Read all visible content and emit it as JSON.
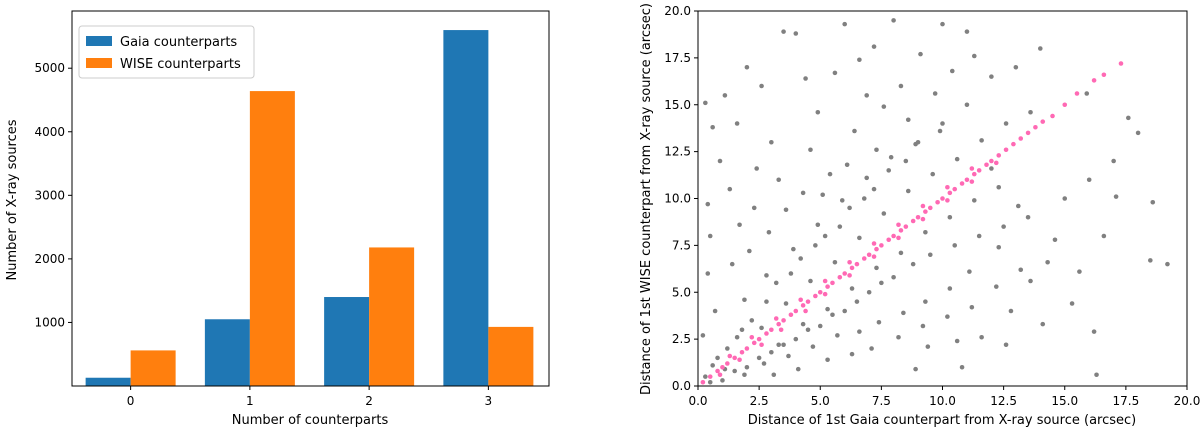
{
  "chart_data": [
    {
      "type": "bar",
      "xlabel": "Number of counterparts",
      "ylabel": "Number of X-ray sources",
      "categories": [
        "0",
        "1",
        "2",
        "3"
      ],
      "series": [
        {
          "name": "Gaia counterparts",
          "color": "#1f77b4",
          "values": [
            130,
            1050,
            1400,
            5600
          ]
        },
        {
          "name": "WISE counterparts",
          "color": "#ff7f0e",
          "values": [
            560,
            4640,
            2180,
            930
          ]
        }
      ],
      "ylim": [
        0,
        5900
      ],
      "yticks": [
        "1000",
        "2000",
        "3000",
        "4000",
        "5000"
      ],
      "legend": "top-left"
    },
    {
      "type": "scatter",
      "xlabel": "Distance of 1st Gaia counterpart from X-ray source (arcsec)",
      "ylabel": "Distance of 1st WISE counterpart from X-ray source (arcsec)",
      "xlim": [
        0,
        20
      ],
      "ylim": [
        0,
        20
      ],
      "xticks": [
        "0.0",
        "2.5",
        "5.0",
        "7.5",
        "10.0",
        "12.5",
        "15.0",
        "17.5",
        "20.0"
      ],
      "yticks": [
        "0.0",
        "2.5",
        "5.0",
        "7.5",
        "10.0",
        "12.5",
        "15.0",
        "17.5",
        "20.0"
      ],
      "series": [
        {
          "color": "#808080",
          "points": [
            [
              0.3,
              0.5
            ],
            [
              0.5,
              0.2
            ],
            [
              0.8,
              1.5
            ],
            [
              1.0,
              0.3
            ],
            [
              1.2,
              2.0
            ],
            [
              1.5,
              0.8
            ],
            [
              1.8,
              3.0
            ],
            [
              2.0,
              1.0
            ],
            [
              2.2,
              3.5
            ],
            [
              2.5,
              1.5
            ],
            [
              2.8,
              4.5
            ],
            [
              3.0,
              1.8
            ],
            [
              3.2,
              5.5
            ],
            [
              3.5,
              2.2
            ],
            [
              3.8,
              6.0
            ],
            [
              4.0,
              2.5
            ],
            [
              4.2,
              6.8
            ],
            [
              4.5,
              3.0
            ],
            [
              4.8,
              7.5
            ],
            [
              5.0,
              3.2
            ],
            [
              5.2,
              8.0
            ],
            [
              5.5,
              3.8
            ],
            [
              5.8,
              8.5
            ],
            [
              6.0,
              4.0
            ],
            [
              6.2,
              9.5
            ],
            [
              6.5,
              4.5
            ],
            [
              6.8,
              10.0
            ],
            [
              7.0,
              5.0
            ],
            [
              7.2,
              10.5
            ],
            [
              7.5,
              5.5
            ],
            [
              7.8,
              11.5
            ],
            [
              8.0,
              5.8
            ],
            [
              8.5,
              12.0
            ],
            [
              8.8,
              6.5
            ],
            [
              9.0,
              13.0
            ],
            [
              9.5,
              7.0
            ],
            [
              10.0,
              14.0
            ],
            [
              10.5,
              7.5
            ],
            [
              11.0,
              15.0
            ],
            [
              11.5,
              8.0
            ],
            [
              12.0,
              16.5
            ],
            [
              12.5,
              8.5
            ],
            [
              13.0,
              17.0
            ],
            [
              13.5,
              9.0
            ],
            [
              14.0,
              18.0
            ],
            [
              15.0,
              10.0
            ],
            [
              16.0,
              11.0
            ],
            [
              17.0,
              12.0
            ],
            [
              18.0,
              13.5
            ],
            [
              19.2,
              6.5
            ],
            [
              18.6,
              9.8
            ],
            [
              18.5,
              6.7
            ],
            [
              17.6,
              14.3
            ],
            [
              15.9,
              15.6
            ],
            [
              16.2,
              2.9
            ],
            [
              16.3,
              0.6
            ],
            [
              12.8,
              4.0
            ],
            [
              11.6,
              2.6
            ],
            [
              10.8,
              1.0
            ],
            [
              9.4,
              2.1
            ],
            [
              13.2,
              6.2
            ],
            [
              14.6,
              7.8
            ],
            [
              15.3,
              4.4
            ],
            [
              12.0,
              11.6
            ],
            [
              2.0,
              17.0
            ],
            [
              3.5,
              18.9
            ],
            [
              4.0,
              18.8
            ],
            [
              6.0,
              19.3
            ],
            [
              8.0,
              19.5
            ],
            [
              10.0,
              19.3
            ],
            [
              11.0,
              18.9
            ],
            [
              0.5,
              8.0
            ],
            [
              0.9,
              12.0
            ],
            [
              1.1,
              15.5
            ],
            [
              1.6,
              14.0
            ],
            [
              2.6,
              16.0
            ],
            [
              3.0,
              13.0
            ],
            [
              4.4,
              16.4
            ],
            [
              5.6,
              16.7
            ],
            [
              6.6,
              17.4
            ],
            [
              7.2,
              18.1
            ],
            [
              9.1,
              17.7
            ],
            [
              1.3,
              10.5
            ],
            [
              2.3,
              9.5
            ],
            [
              3.3,
              11.0
            ],
            [
              4.6,
              12.6
            ],
            [
              5.4,
              11.3
            ],
            [
              6.4,
              13.6
            ],
            [
              7.6,
              14.9
            ],
            [
              8.3,
              16.0
            ],
            [
              0.4,
              6.0
            ],
            [
              0.7,
              4.0
            ],
            [
              1.4,
              6.5
            ],
            [
              2.1,
              7.2
            ],
            [
              2.9,
              8.2
            ],
            [
              3.6,
              9.4
            ],
            [
              4.3,
              10.3
            ],
            [
              5.1,
              10.2
            ],
            [
              6.1,
              11.8
            ],
            [
              7.3,
              12.6
            ],
            [
              8.6,
              14.2
            ],
            [
              9.7,
              15.6
            ],
            [
              10.4,
              16.8
            ],
            [
              11.3,
              17.6
            ],
            [
              6.9,
              15.5
            ],
            [
              4.9,
              14.6
            ],
            [
              2.4,
              11.6
            ],
            [
              1.7,
              8.6
            ],
            [
              3.1,
              0.6
            ],
            [
              4.1,
              0.9
            ],
            [
              5.3,
              1.4
            ],
            [
              6.3,
              1.7
            ],
            [
              7.1,
              2.0
            ],
            [
              8.2,
              2.6
            ],
            [
              9.2,
              3.2
            ],
            [
              10.2,
              3.7
            ],
            [
              11.2,
              4.2
            ],
            [
              12.2,
              5.3
            ],
            [
              13.6,
              5.6
            ],
            [
              14.3,
              6.6
            ],
            [
              8.9,
              0.9
            ],
            [
              10.6,
              2.4
            ],
            [
              12.6,
              2.2
            ],
            [
              14.1,
              3.3
            ],
            [
              15.6,
              6.1
            ],
            [
              16.6,
              8.0
            ],
            [
              17.1,
              10.1
            ],
            [
              13.1,
              9.6
            ],
            [
              12.3,
              7.4
            ],
            [
              11.1,
              6.1
            ],
            [
              10.3,
              5.2
            ],
            [
              9.3,
              4.5
            ],
            [
              8.4,
              3.9
            ],
            [
              7.4,
              3.4
            ],
            [
              6.6,
              2.9
            ],
            [
              5.7,
              2.7
            ],
            [
              4.7,
              2.1
            ],
            [
              3.7,
              1.6
            ],
            [
              2.7,
              1.2
            ],
            [
              1.9,
              0.6
            ],
            [
              1.1,
              0.9
            ],
            [
              0.6,
              1.1
            ],
            [
              1.6,
              2.6
            ],
            [
              2.6,
              3.1
            ],
            [
              3.6,
              4.4
            ],
            [
              4.6,
              5.6
            ],
            [
              5.6,
              6.6
            ],
            [
              6.6,
              7.9
            ],
            [
              7.6,
              9.2
            ],
            [
              8.6,
              10.4
            ],
            [
              9.6,
              11.3
            ],
            [
              10.6,
              12.1
            ],
            [
              11.6,
              13.1
            ],
            [
              12.6,
              14.0
            ],
            [
              13.6,
              14.6
            ],
            [
              1.9,
              4.6
            ],
            [
              2.8,
              5.9
            ],
            [
              3.9,
              7.3
            ],
            [
              4.9,
              8.6
            ],
            [
              5.9,
              9.9
            ],
            [
              6.9,
              11.1
            ],
            [
              7.9,
              12.2
            ],
            [
              8.9,
              12.9
            ],
            [
              9.9,
              13.6
            ],
            [
              3.3,
              2.2
            ],
            [
              4.3,
              3.3
            ],
            [
              5.3,
              4.1
            ],
            [
              6.3,
              5.2
            ],
            [
              7.3,
              6.3
            ],
            [
              8.3,
              7.1
            ],
            [
              9.3,
              8.2
            ],
            [
              10.3,
              9.0
            ],
            [
              11.3,
              9.9
            ],
            [
              12.3,
              10.6
            ],
            [
              0.2,
              2.7
            ],
            [
              0.4,
              9.7
            ],
            [
              0.6,
              13.8
            ],
            [
              0.3,
              15.1
            ]
          ]
        },
        {
          "color": "#ff69b4",
          "points": [
            [
              0.2,
              0.2
            ],
            [
              0.5,
              0.5
            ],
            [
              0.8,
              0.8
            ],
            [
              1.0,
              1.0
            ],
            [
              1.2,
              1.2
            ],
            [
              1.5,
              1.5
            ],
            [
              1.8,
              1.8
            ],
            [
              2.0,
              2.0
            ],
            [
              2.3,
              2.3
            ],
            [
              2.5,
              2.5
            ],
            [
              2.8,
              2.8
            ],
            [
              3.0,
              3.0
            ],
            [
              3.3,
              3.3
            ],
            [
              3.5,
              3.5
            ],
            [
              3.8,
              3.8
            ],
            [
              4.0,
              4.0
            ],
            [
              4.3,
              4.3
            ],
            [
              4.5,
              4.5
            ],
            [
              4.8,
              4.8
            ],
            [
              5.0,
              5.0
            ],
            [
              5.3,
              5.3
            ],
            [
              5.5,
              5.5
            ],
            [
              5.8,
              5.8
            ],
            [
              6.0,
              6.0
            ],
            [
              6.3,
              6.3
            ],
            [
              6.5,
              6.5
            ],
            [
              6.8,
              6.8
            ],
            [
              7.0,
              7.0
            ],
            [
              7.3,
              7.3
            ],
            [
              7.5,
              7.5
            ],
            [
              7.8,
              7.8
            ],
            [
              8.0,
              8.0
            ],
            [
              8.3,
              8.3
            ],
            [
              8.5,
              8.5
            ],
            [
              8.8,
              8.8
            ],
            [
              9.0,
              9.0
            ],
            [
              9.3,
              9.3
            ],
            [
              9.5,
              9.5
            ],
            [
              9.8,
              9.8
            ],
            [
              10.0,
              10.0
            ],
            [
              10.3,
              10.3
            ],
            [
              10.5,
              10.5
            ],
            [
              10.8,
              10.8
            ],
            [
              11.0,
              11.0
            ],
            [
              11.3,
              11.3
            ],
            [
              11.5,
              11.5
            ],
            [
              11.8,
              11.8
            ],
            [
              12.0,
              12.0
            ],
            [
              12.3,
              12.3
            ],
            [
              12.6,
              12.6
            ],
            [
              12.9,
              12.9
            ],
            [
              13.2,
              13.2
            ],
            [
              13.5,
              13.5
            ],
            [
              13.8,
              13.8
            ],
            [
              14.1,
              14.1
            ],
            [
              14.5,
              14.4
            ],
            [
              15.0,
              15.0
            ],
            [
              15.5,
              15.6
            ],
            [
              16.2,
              16.3
            ],
            [
              16.6,
              16.6
            ],
            [
              17.3,
              17.2
            ],
            [
              0.9,
              0.6
            ],
            [
              1.7,
              1.4
            ],
            [
              2.6,
              2.2
            ],
            [
              3.4,
              3.0
            ],
            [
              4.4,
              4.0
            ],
            [
              5.2,
              4.9
            ],
            [
              6.2,
              5.9
            ],
            [
              7.2,
              6.9
            ],
            [
              8.2,
              7.9
            ],
            [
              9.2,
              8.9
            ],
            [
              10.2,
              9.9
            ],
            [
              11.2,
              10.9
            ],
            [
              12.2,
              11.9
            ],
            [
              1.3,
              1.6
            ],
            [
              2.2,
              2.6
            ],
            [
              3.2,
              3.6
            ],
            [
              4.2,
              4.6
            ],
            [
              5.2,
              5.6
            ],
            [
              6.2,
              6.6
            ],
            [
              7.2,
              7.6
            ],
            [
              8.2,
              8.6
            ],
            [
              9.2,
              9.6
            ],
            [
              10.2,
              10.6
            ],
            [
              11.2,
              11.6
            ]
          ]
        }
      ]
    }
  ]
}
